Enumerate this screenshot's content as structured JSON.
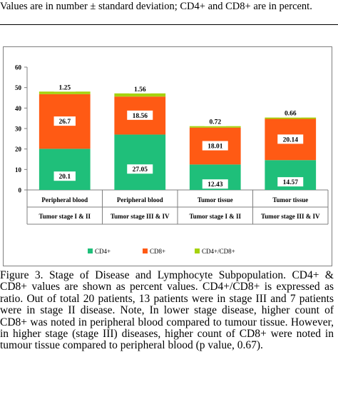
{
  "header_note": "Values are in number ± standard deviation; CD4+ and CD8+ are in percent.",
  "caption": "Figure 3. Stage of Disease and Lymphocyte Subpopulation. CD4+ & CD8+ values are shown as percent values. CD4+/CD8+ is expressed as ratio. Out of total 20 patients, 13 patients were in stage III and 7 patients were in stage II disease. Note, In lower stage disease, higher count of CD8+ was noted in peripheral blood compared to tumour tissue. However, in higher stage (stage III) diseases, higher count of CD8+ were noted in tumour tissue compared to peripheral blood (p value, 0.67).",
  "chart_data": {
    "type": "bar",
    "stacked": true,
    "categories": [
      [
        "Peripheral blood",
        "Tumor stage I & II"
      ],
      [
        "Peripheral blood",
        "Tumor stage III & IV"
      ],
      [
        "Tumor tissue",
        "Tumor stage I & II"
      ],
      [
        "Tumor tissue",
        "Tumor stage III & IV"
      ]
    ],
    "series": [
      {
        "name": "CD4+",
        "color": "#1fbf7a",
        "values": [
          20.1,
          27.05,
          12.43,
          14.57
        ],
        "labels": [
          "20.1",
          "27.05",
          "12.43",
          "14.57"
        ]
      },
      {
        "name": "CD8+",
        "color": "#ff5a14",
        "values": [
          26.7,
          18.56,
          18.01,
          20.14
        ],
        "labels": [
          "26.7",
          "18.56",
          "18.01",
          "20.14"
        ]
      },
      {
        "name": "CD4+/CD8+",
        "color": "#a6d20e",
        "values": [
          1.25,
          1.56,
          0.72,
          0.66
        ],
        "labels": [
          "1.25",
          "1.56",
          "0.72",
          "0.66"
        ]
      }
    ],
    "ylim": [
      0,
      60
    ],
    "yticks": [
      0,
      10,
      20,
      30,
      40,
      50,
      60
    ],
    "grid": false,
    "legend_position": "bottom"
  }
}
